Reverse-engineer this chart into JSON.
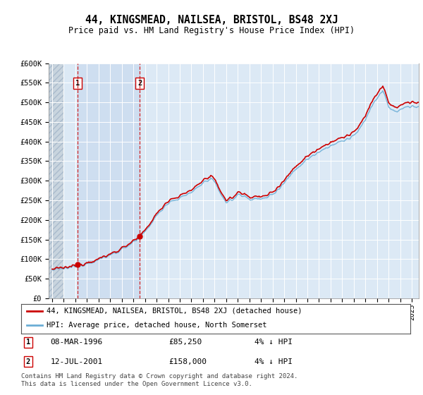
{
  "title": "44, KINGSMEAD, NAILSEA, BRISTOL, BS48 2XJ",
  "subtitle": "Price paid vs. HM Land Registry's House Price Index (HPI)",
  "ylim": [
    0,
    600000
  ],
  "yticks": [
    0,
    50000,
    100000,
    150000,
    200000,
    250000,
    300000,
    350000,
    400000,
    450000,
    500000,
    550000,
    600000
  ],
  "ytick_labels": [
    "£0",
    "£50K",
    "£100K",
    "£150K",
    "£200K",
    "£250K",
    "£300K",
    "£350K",
    "£400K",
    "£450K",
    "£500K",
    "£550K",
    "£600K"
  ],
  "hpi_color": "#6baed6",
  "price_color": "#cc0000",
  "dashed_color": "#cc0000",
  "bg_plot": "#dce9f5",
  "bg_hatch_color": "#c8d4e0",
  "highlight_color": "#c5d8ee",
  "grid_color": "#ffffff",
  "legend_label_price": "44, KINGSMEAD, NAILSEA, BRISTOL, BS48 2XJ (detached house)",
  "legend_label_hpi": "HPI: Average price, detached house, North Somerset",
  "sale1_date": "08-MAR-1996",
  "sale1_price": 85250,
  "sale1_year": 1996.19,
  "sale1_pct": "4% ↓ HPI",
  "sale2_date": "12-JUL-2001",
  "sale2_price": 158000,
  "sale2_year": 2001.54,
  "sale2_pct": "4% ↓ HPI",
  "footer": "Contains HM Land Registry data © Crown copyright and database right 2024.\nThis data is licensed under the Open Government Licence v3.0.",
  "x_start_year": 1994,
  "x_end_year": 2025,
  "hpi_seed": 12345
}
